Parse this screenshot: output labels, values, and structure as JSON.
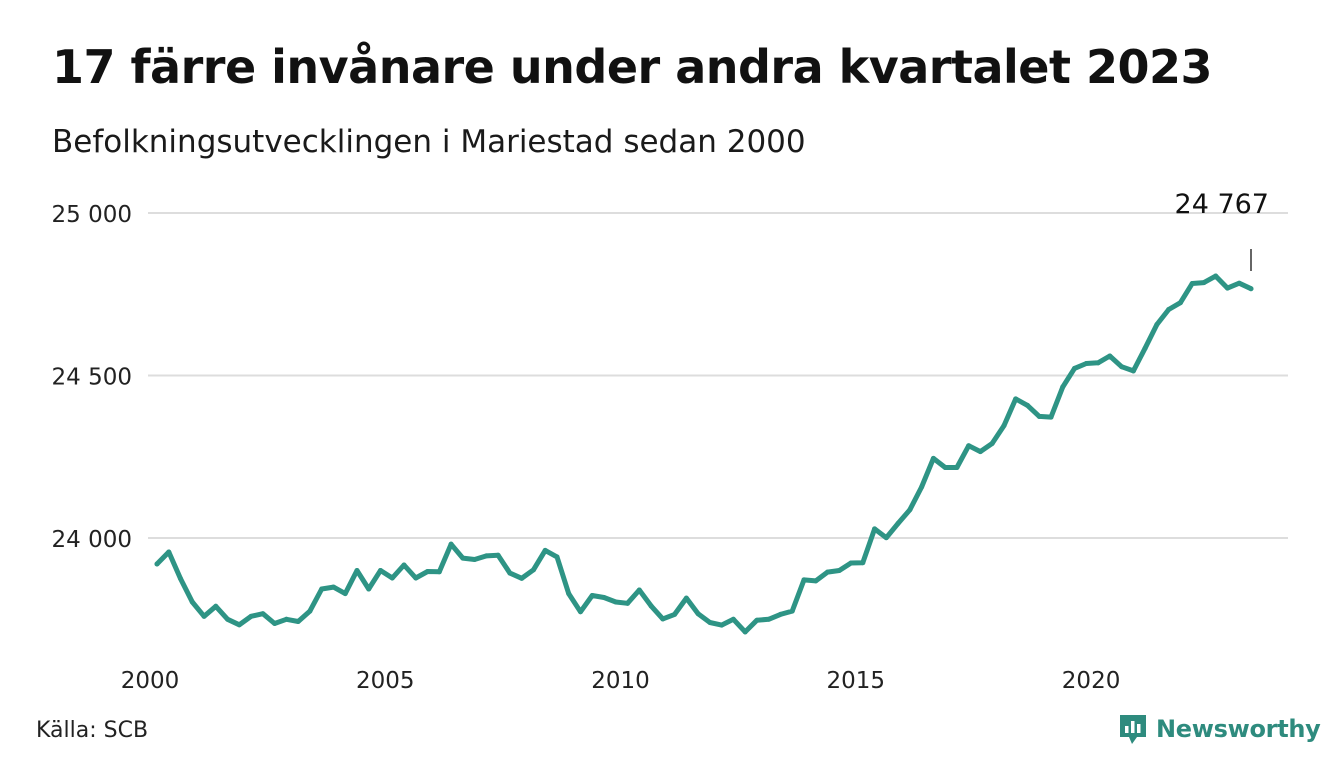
{
  "title": "17 färre invånare under andra kvartalet 2023",
  "subtitle": "Befolkningsutvecklingen i Mariestad sedan 2000",
  "source": "Källa: SCB",
  "brand": {
    "name": "Newsworthy",
    "icon": "newsworthy-logo-icon",
    "color": "#2e8b7e"
  },
  "chart_data": {
    "type": "line",
    "title": "17 färre invånare under andra kvartalet 2023",
    "subtitle": "Befolkningsutvecklingen i Mariestad sedan 2000",
    "xlabel": "",
    "ylabel": "",
    "x_range": [
      2000,
      2023.5
    ],
    "ylim": [
      23700,
      25000
    ],
    "y_ticks": [
      24000,
      24500,
      25000
    ],
    "y_tick_labels": [
      "24 000",
      "24 500",
      "25 000"
    ],
    "x_ticks": [
      2000,
      2005,
      2010,
      2015,
      2020
    ],
    "x_tick_labels": [
      "2000",
      "2005",
      "2010",
      "2015",
      "2020"
    ],
    "grid": "horizontal",
    "line_color": "#2e9485",
    "grid_color": "#dddddd",
    "annotation": {
      "text": "24 767",
      "x": 2023.25,
      "value": 24767
    },
    "series": [
      {
        "x": [
          2000,
          2000.25,
          2000.5,
          2000.75,
          2001,
          2001.25,
          2001.5,
          2001.75,
          2002,
          2002.25,
          2002.5,
          2002.75,
          2003,
          2003.25,
          2003.5,
          2003.75,
          2004,
          2004.25,
          2004.5,
          2004.75,
          2005,
          2005.25,
          2005.5,
          2005.75,
          2006,
          2006.25,
          2006.5,
          2006.75,
          2007,
          2007.25,
          2007.5,
          2007.75,
          2008,
          2008.25,
          2008.5,
          2008.75,
          2009,
          2009.25,
          2009.5,
          2009.75,
          2010,
          2010.25,
          2010.5,
          2010.75,
          2011,
          2011.25,
          2011.5,
          2011.75,
          2012,
          2012.25,
          2012.5,
          2012.75,
          2013,
          2013.25,
          2013.5,
          2013.75,
          2014,
          2014.25,
          2014.5,
          2014.75,
          2015,
          2015.25,
          2015.5,
          2015.75,
          2016,
          2016.25,
          2016.5,
          2016.75,
          2017,
          2017.25,
          2017.5,
          2017.75,
          2018,
          2018.25,
          2018.5,
          2018.75,
          2019,
          2019.25,
          2019.5,
          2019.75,
          2020,
          2020.25,
          2020.5,
          2020.75,
          2021,
          2021.25,
          2021.5,
          2021.75,
          2022,
          2022.25,
          2022.5,
          2022.75,
          2023,
          2023.25
        ],
        "values": [
          23920,
          23957,
          23875,
          23803,
          23759,
          23790,
          23750,
          23733,
          23759,
          23767,
          23737,
          23750,
          23743,
          23775,
          23843,
          23849,
          23829,
          23900,
          23843,
          23900,
          23877,
          23917,
          23877,
          23897,
          23896,
          23981,
          23938,
          23934,
          23945,
          23947,
          23892,
          23876,
          23902,
          23962,
          23942,
          23829,
          23773,
          23823,
          23817,
          23803,
          23799,
          23840,
          23791,
          23751,
          23765,
          23815,
          23767,
          23740,
          23732,
          23750,
          23711,
          23747,
          23750,
          23765,
          23775,
          23871,
          23868,
          23895,
          23900,
          23923,
          23924,
          24028,
          24001,
          24045,
          24087,
          24157,
          24245,
          24217,
          24217,
          24284,
          24266,
          24291,
          24346,
          24428,
          24408,
          24374,
          24372,
          24465,
          24522,
          24537,
          24539,
          24560,
          24527,
          24514,
          24584,
          24657,
          24703,
          24724,
          24783,
          24786,
          24806,
          24769,
          24784,
          24767
        ]
      }
    ]
  }
}
